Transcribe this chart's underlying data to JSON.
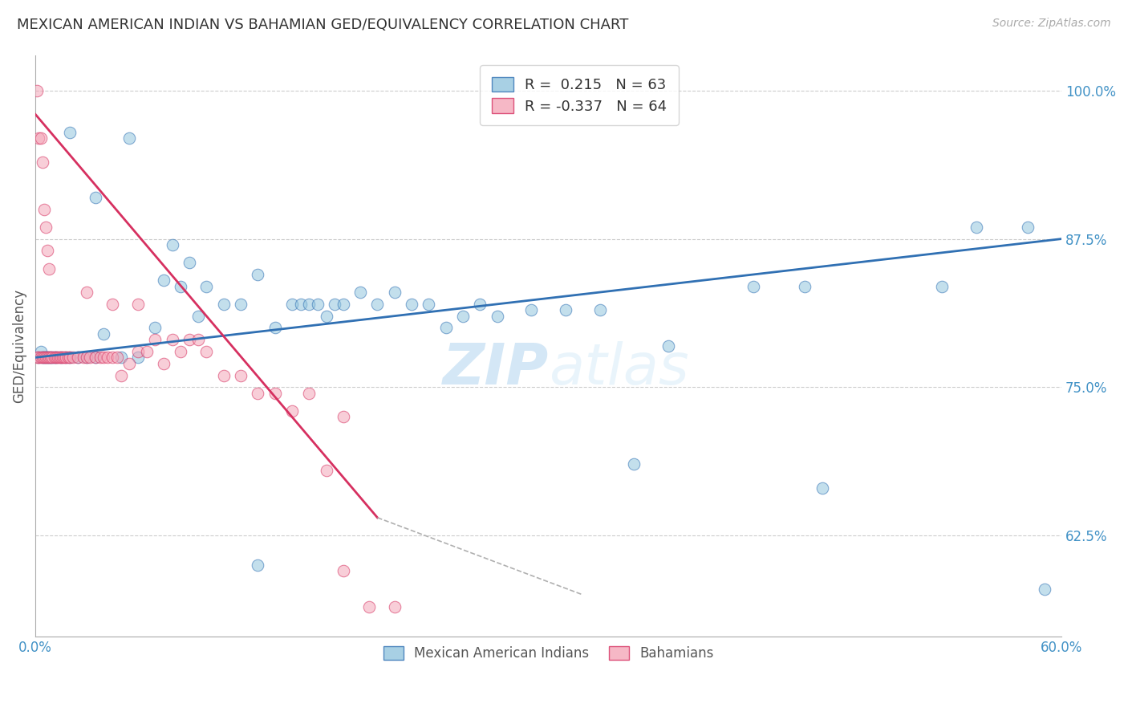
{
  "title": "MEXICAN AMERICAN INDIAN VS BAHAMIAN GED/EQUIVALENCY CORRELATION CHART",
  "source": "Source: ZipAtlas.com",
  "ylabel": "GED/Equivalency",
  "legend_label_blue": "Mexican American Indians",
  "legend_label_pink": "Bahamians",
  "r_blue": 0.215,
  "n_blue": 63,
  "r_pink": -0.337,
  "n_pink": 64,
  "color_blue": "#92c5de",
  "color_pink": "#f4a6b8",
  "color_trendline_blue": "#3070b3",
  "color_trendline_pink": "#d63060",
  "color_axis_labels": "#4292c6",
  "xmin": 0.0,
  "xmax": 0.6,
  "ymin": 0.54,
  "ymax": 1.03,
  "yticks": [
    0.625,
    0.75,
    0.875,
    1.0
  ],
  "ytick_labels": [
    "62.5%",
    "75.0%",
    "87.5%",
    "100.0%"
  ],
  "blue_x": [
    0.002,
    0.003,
    0.004,
    0.005,
    0.006,
    0.007,
    0.008,
    0.009,
    0.01,
    0.011,
    0.012,
    0.015,
    0.018,
    0.02,
    0.025,
    0.03,
    0.035,
    0.04,
    0.05,
    0.06,
    0.07,
    0.075,
    0.08,
    0.085,
    0.09,
    0.095,
    0.1,
    0.11,
    0.12,
    0.13,
    0.14,
    0.15,
    0.155,
    0.16,
    0.165,
    0.17,
    0.175,
    0.18,
    0.19,
    0.2,
    0.21,
    0.22,
    0.23,
    0.24,
    0.25,
    0.26,
    0.27,
    0.29,
    0.31,
    0.33,
    0.35,
    0.37,
    0.42,
    0.45,
    0.46,
    0.53,
    0.55,
    0.58,
    0.59,
    0.02,
    0.035,
    0.055,
    0.13
  ],
  "blue_y": [
    0.775,
    0.78,
    0.775,
    0.775,
    0.775,
    0.775,
    0.775,
    0.775,
    0.775,
    0.775,
    0.775,
    0.775,
    0.775,
    0.775,
    0.775,
    0.775,
    0.775,
    0.795,
    0.775,
    0.775,
    0.8,
    0.84,
    0.87,
    0.835,
    0.855,
    0.81,
    0.835,
    0.82,
    0.82,
    0.845,
    0.8,
    0.82,
    0.82,
    0.82,
    0.82,
    0.81,
    0.82,
    0.82,
    0.83,
    0.82,
    0.83,
    0.82,
    0.82,
    0.8,
    0.81,
    0.82,
    0.81,
    0.815,
    0.815,
    0.815,
    0.685,
    0.785,
    0.835,
    0.835,
    0.665,
    0.835,
    0.885,
    0.885,
    0.58,
    0.965,
    0.91,
    0.96,
    0.6
  ],
  "pink_x": [
    0.001,
    0.002,
    0.003,
    0.004,
    0.005,
    0.006,
    0.007,
    0.008,
    0.009,
    0.01,
    0.011,
    0.012,
    0.013,
    0.014,
    0.015,
    0.016,
    0.017,
    0.018,
    0.019,
    0.02,
    0.022,
    0.025,
    0.028,
    0.03,
    0.032,
    0.035,
    0.038,
    0.04,
    0.042,
    0.045,
    0.048,
    0.05,
    0.055,
    0.06,
    0.065,
    0.07,
    0.075,
    0.08,
    0.085,
    0.09,
    0.095,
    0.1,
    0.11,
    0.12,
    0.13,
    0.14,
    0.15,
    0.16,
    0.17,
    0.18,
    0.001,
    0.002,
    0.003,
    0.004,
    0.005,
    0.006,
    0.007,
    0.008,
    0.03,
    0.045,
    0.06,
    0.18,
    0.195,
    0.21
  ],
  "pink_y": [
    0.775,
    0.775,
    0.775,
    0.775,
    0.775,
    0.775,
    0.775,
    0.775,
    0.775,
    0.775,
    0.775,
    0.775,
    0.775,
    0.775,
    0.775,
    0.775,
    0.775,
    0.775,
    0.775,
    0.775,
    0.775,
    0.775,
    0.775,
    0.775,
    0.775,
    0.775,
    0.775,
    0.775,
    0.775,
    0.775,
    0.775,
    0.76,
    0.77,
    0.78,
    0.78,
    0.79,
    0.77,
    0.79,
    0.78,
    0.79,
    0.79,
    0.78,
    0.76,
    0.76,
    0.745,
    0.745,
    0.73,
    0.745,
    0.68,
    0.725,
    1.0,
    0.96,
    0.96,
    0.94,
    0.9,
    0.885,
    0.865,
    0.85,
    0.83,
    0.82,
    0.82,
    0.595,
    0.565,
    0.565
  ],
  "trendline_blue_x0": 0.0,
  "trendline_blue_x1": 0.6,
  "trendline_blue_y0": 0.775,
  "trendline_blue_y1": 0.875,
  "trendline_pink_solid_x0": 0.0,
  "trendline_pink_solid_x1": 0.2,
  "trendline_pink_y0": 0.98,
  "trendline_pink_y1": 0.64,
  "trendline_pink_dash_x1": 0.32,
  "trendline_pink_dash_y1": 0.575,
  "watermark": "ZIPatlas",
  "watermark_zip": "ZIP",
  "watermark_atlas": "atlas"
}
